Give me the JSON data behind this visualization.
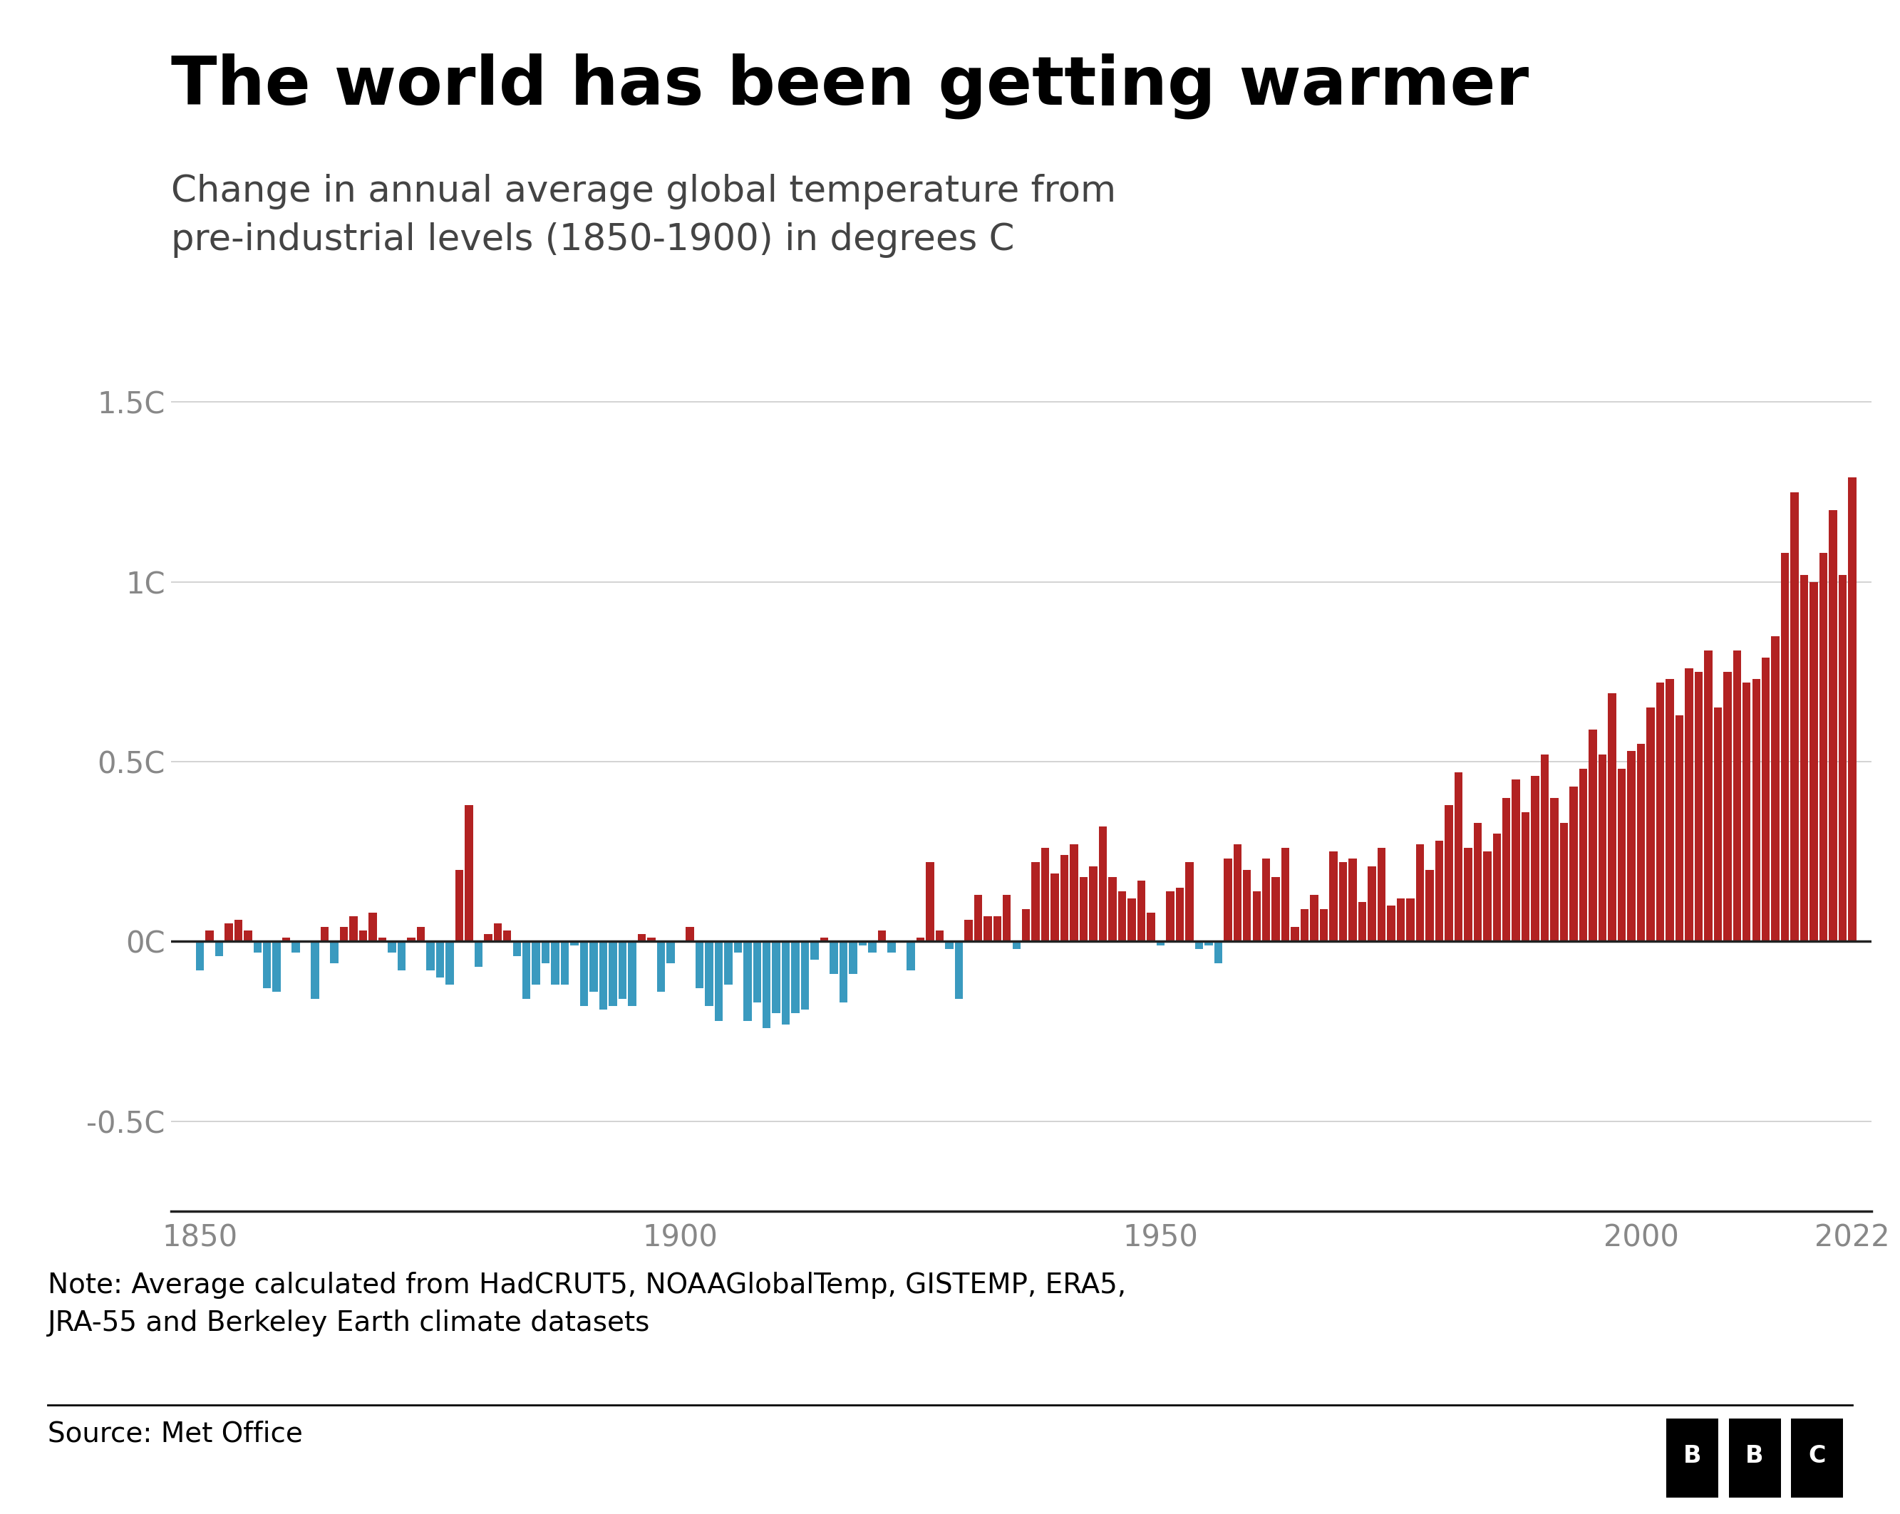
{
  "title": "The world has been getting warmer",
  "subtitle": "Change in annual average global temperature from\npre-industrial levels (1850-1900) in degrees C",
  "note": "Note: Average calculated from HadCRUT5, NOAAGlobalTemp, GISTEMP, ERA5,\nJRA-55 and Berkeley Earth climate datasets",
  "source": "Source: Met Office",
  "background_color": "#ffffff",
  "title_color": "#000000",
  "subtitle_color": "#444444",
  "note_color": "#000000",
  "bar_color_positive": "#b22222",
  "bar_color_negative": "#3a9abf",
  "ytick_labels": [
    "1.5C",
    "1C",
    "0.5C",
    "0C",
    "-0.5C"
  ],
  "ytick_values": [
    1.5,
    1.0,
    0.5,
    0.0,
    -0.5
  ],
  "xtick_labels": [
    "1850",
    "1900",
    "1950",
    "2000",
    "2022"
  ],
  "xtick_values": [
    1850,
    1900,
    1950,
    2000,
    2022
  ],
  "ylim": [
    -0.75,
    1.65
  ],
  "xlim": [
    1847,
    2024
  ],
  "years": [
    1850,
    1851,
    1852,
    1853,
    1854,
    1855,
    1856,
    1857,
    1858,
    1859,
    1860,
    1861,
    1862,
    1863,
    1864,
    1865,
    1866,
    1867,
    1868,
    1869,
    1870,
    1871,
    1872,
    1873,
    1874,
    1875,
    1876,
    1877,
    1878,
    1879,
    1880,
    1881,
    1882,
    1883,
    1884,
    1885,
    1886,
    1887,
    1888,
    1889,
    1890,
    1891,
    1892,
    1893,
    1894,
    1895,
    1896,
    1897,
    1898,
    1899,
    1900,
    1901,
    1902,
    1903,
    1904,
    1905,
    1906,
    1907,
    1908,
    1909,
    1910,
    1911,
    1912,
    1913,
    1914,
    1915,
    1916,
    1917,
    1918,
    1919,
    1920,
    1921,
    1922,
    1923,
    1924,
    1925,
    1926,
    1927,
    1928,
    1929,
    1930,
    1931,
    1932,
    1933,
    1934,
    1935,
    1936,
    1937,
    1938,
    1939,
    1940,
    1941,
    1942,
    1943,
    1944,
    1945,
    1946,
    1947,
    1948,
    1949,
    1950,
    1951,
    1952,
    1953,
    1954,
    1955,
    1956,
    1957,
    1958,
    1959,
    1960,
    1961,
    1962,
    1963,
    1964,
    1965,
    1966,
    1967,
    1968,
    1969,
    1970,
    1971,
    1972,
    1973,
    1974,
    1975,
    1976,
    1977,
    1978,
    1979,
    1980,
    1981,
    1982,
    1983,
    1984,
    1985,
    1986,
    1987,
    1988,
    1989,
    1990,
    1991,
    1992,
    1993,
    1994,
    1995,
    1996,
    1997,
    1998,
    1999,
    2000,
    2001,
    2002,
    2003,
    2004,
    2005,
    2006,
    2007,
    2008,
    2009,
    2010,
    2011,
    2012,
    2013,
    2014,
    2015,
    2016,
    2017,
    2018,
    2019,
    2020,
    2021,
    2022
  ],
  "anomalies": [
    -0.08,
    0.03,
    -0.04,
    0.05,
    0.06,
    0.03,
    -0.03,
    -0.13,
    -0.14,
    0.01,
    -0.03,
    0.0,
    -0.16,
    0.04,
    -0.06,
    0.04,
    0.07,
    0.03,
    0.08,
    0.01,
    -0.03,
    -0.08,
    0.01,
    0.04,
    -0.08,
    -0.1,
    -0.12,
    0.2,
    0.38,
    -0.07,
    0.02,
    0.05,
    0.03,
    -0.04,
    -0.16,
    -0.12,
    -0.06,
    -0.12,
    -0.12,
    -0.01,
    -0.18,
    -0.14,
    -0.19,
    -0.18,
    -0.16,
    -0.18,
    0.02,
    0.01,
    -0.14,
    -0.06,
    0.0,
    0.04,
    -0.13,
    -0.18,
    -0.22,
    -0.12,
    -0.03,
    -0.22,
    -0.17,
    -0.24,
    -0.2,
    -0.23,
    -0.2,
    -0.19,
    -0.05,
    0.01,
    -0.09,
    -0.17,
    -0.09,
    -0.01,
    -0.03,
    0.03,
    -0.03,
    0.0,
    -0.08,
    0.01,
    0.22,
    0.03,
    -0.02,
    -0.16,
    0.06,
    0.13,
    0.07,
    0.07,
    0.13,
    -0.02,
    0.09,
    0.22,
    0.26,
    0.19,
    0.24,
    0.27,
    0.18,
    0.21,
    0.32,
    0.18,
    0.14,
    0.12,
    0.17,
    0.08,
    -0.01,
    0.14,
    0.15,
    0.22,
    -0.02,
    -0.01,
    -0.06,
    0.23,
    0.27,
    0.2,
    0.14,
    0.23,
    0.18,
    0.26,
    0.04,
    0.09,
    0.13,
    0.09,
    0.25,
    0.22,
    0.23,
    0.11,
    0.21,
    0.26,
    0.1,
    0.12,
    0.12,
    0.27,
    0.2,
    0.28,
    0.38,
    0.47,
    0.26,
    0.33,
    0.25,
    0.3,
    0.4,
    0.45,
    0.36,
    0.46,
    0.52,
    0.4,
    0.33,
    0.43,
    0.48,
    0.59,
    0.52,
    0.69,
    0.48,
    0.53,
    0.55,
    0.65,
    0.72,
    0.73,
    0.63,
    0.76,
    0.75,
    0.81,
    0.65,
    0.75,
    0.81,
    0.72,
    0.73,
    0.79,
    0.85,
    1.08,
    1.25,
    1.02,
    1.0,
    1.08,
    1.2,
    1.02,
    1.29
  ]
}
